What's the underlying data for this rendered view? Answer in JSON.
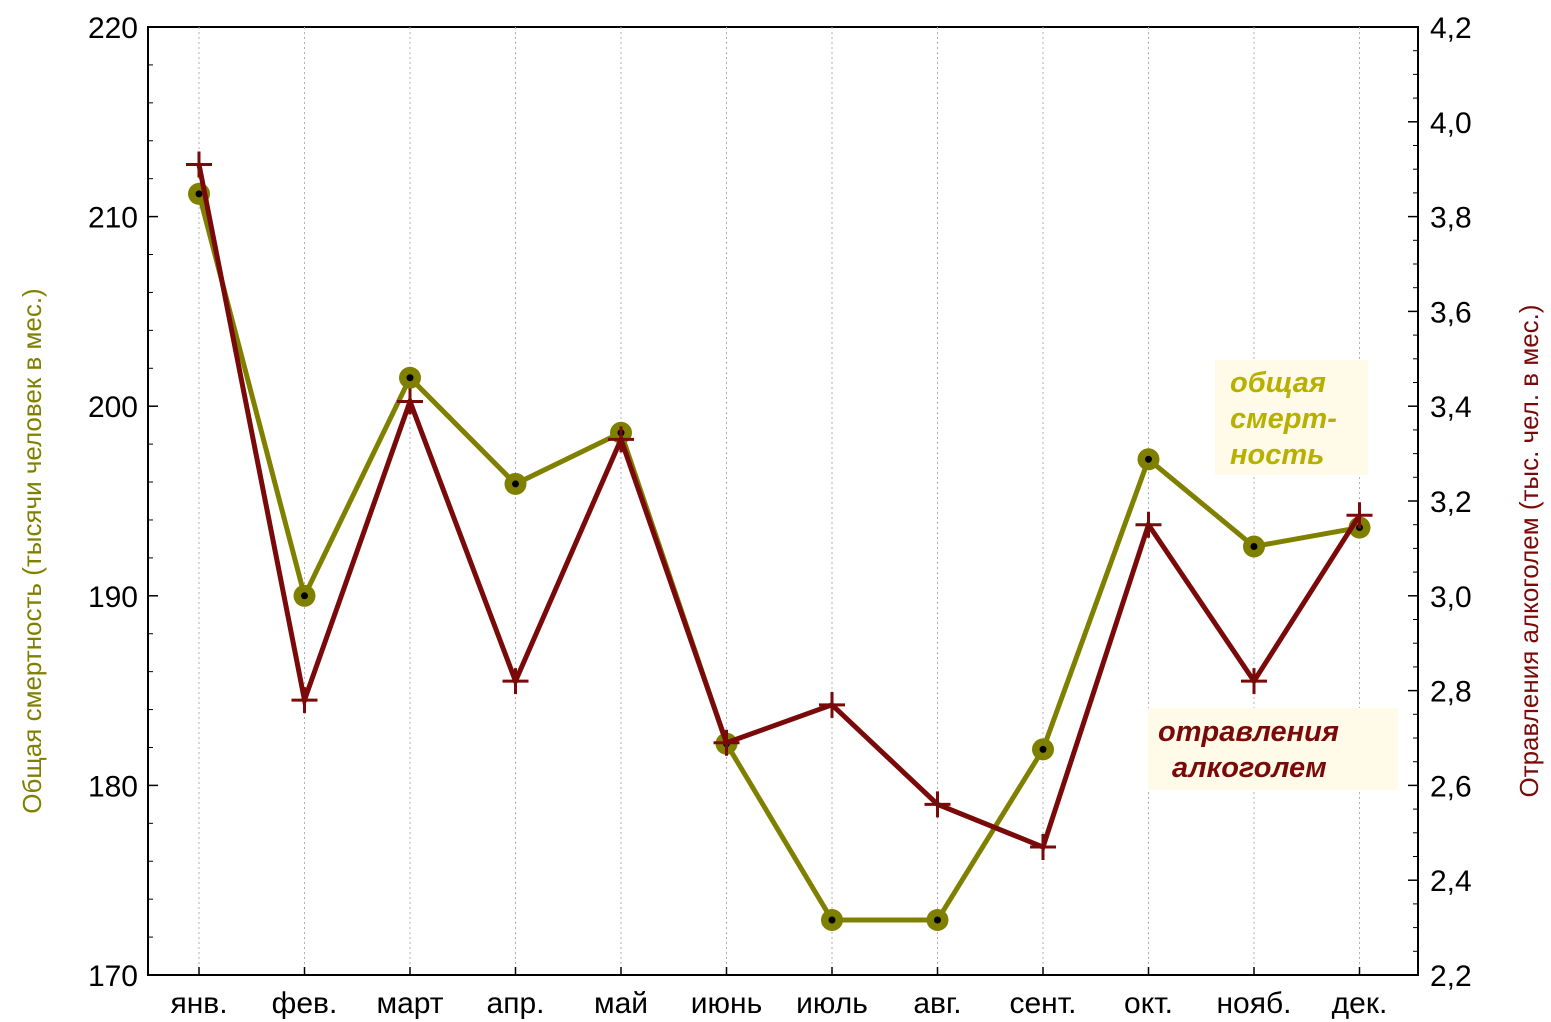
{
  "chart_data": {
    "type": "line",
    "categories": [
      "янв.",
      "фев.",
      "март",
      "апр.",
      "май",
      "июнь",
      "июль",
      "авг.",
      "сент.",
      "окт.",
      "нояб.",
      "дек."
    ],
    "series": [
      {
        "name": "общая смерт-ность",
        "axis": "left",
        "color": "#808000",
        "marker": "circle",
        "values": [
          211.2,
          190.0,
          201.5,
          195.9,
          198.6,
          182.2,
          172.9,
          172.9,
          181.9,
          197.2,
          192.6,
          193.6
        ]
      },
      {
        "name": "отравления алкоголем",
        "axis": "right",
        "color": "#7a0a0a",
        "marker": "plus",
        "values": [
          3.91,
          2.78,
          3.41,
          2.82,
          3.33,
          2.69,
          2.77,
          2.56,
          2.47,
          3.15,
          2.82,
          3.17
        ]
      }
    ],
    "ylabel": "Общая смертность (тысячи человек в мес.)",
    "ylabel_right": "Отравления алкоголем (тыс. чел. в мес.)",
    "ylim": [
      170,
      220
    ],
    "ylim_right": [
      2.2,
      4.2
    ],
    "yticks": [
      "170",
      "180",
      "190",
      "200",
      "210",
      "220"
    ],
    "yticks_right": [
      "2,2",
      "2,4",
      "2,6",
      "2,8",
      "3,0",
      "3,2",
      "3,4",
      "3,6",
      "3,8",
      "4,0",
      "4,2"
    ],
    "legend": [
      {
        "lines": [
          "общая",
          "смерт-",
          "ность"
        ],
        "color": "#b8b000",
        "placement": "right, upper-middle"
      },
      {
        "lines": [
          "отравления",
          "алкоголем"
        ],
        "color": "#7a0a0a",
        "placement": "right, lower-middle"
      }
    ],
    "grid": "vertical dotted",
    "colors": {
      "left_axis_title": "#808000",
      "right_axis_title": "#7a0a0a",
      "legend_background": "#fffbe8"
    }
  }
}
